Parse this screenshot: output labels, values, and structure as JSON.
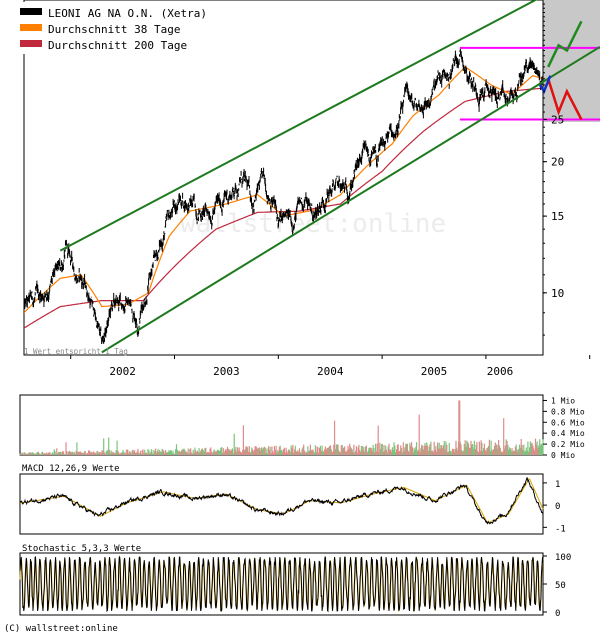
{
  "chart_data": [
    {
      "type": "line",
      "panel": "price",
      "legend": [
        {
          "name": "LEONI AG NA O.N. (Xetra)",
          "color": "#000000"
        },
        {
          "name": "Durchschnitt 38 Tage",
          "color": "#ff7f00"
        },
        {
          "name": "Durchschnitt 200 Tage",
          "color": "#c0283c"
        }
      ],
      "y_scale": "log",
      "ylim": [
        7.2,
        47
      ],
      "y_ticks": [
        10,
        15,
        20,
        25
      ],
      "xlim": [
        2001.55,
        2006.55
      ],
      "x_ticks": [
        2002,
        2003,
        2004,
        2005,
        2006
      ],
      "note": "1 Wert entspricht 1 Tag",
      "watermark": "wallstreet:online",
      "price_anchors": [
        {
          "x": 2001.55,
          "y": 9.2
        },
        {
          "x": 2001.75,
          "y": 10.0
        },
        {
          "x": 2001.9,
          "y": 11.2
        },
        {
          "x": 2001.95,
          "y": 12.4
        },
        {
          "x": 2002.05,
          "y": 11.2
        },
        {
          "x": 2002.15,
          "y": 10.3
        },
        {
          "x": 2002.25,
          "y": 8.6
        },
        {
          "x": 2002.3,
          "y": 7.5
        },
        {
          "x": 2002.4,
          "y": 9.2
        },
        {
          "x": 2002.55,
          "y": 9.6
        },
        {
          "x": 2002.65,
          "y": 8.7
        },
        {
          "x": 2002.75,
          "y": 10.5
        },
        {
          "x": 2002.85,
          "y": 12.5
        },
        {
          "x": 2002.95,
          "y": 14.8
        },
        {
          "x": 2003.05,
          "y": 16.5
        },
        {
          "x": 2003.15,
          "y": 16.0
        },
        {
          "x": 2003.3,
          "y": 15.2
        },
        {
          "x": 2003.4,
          "y": 15.8
        },
        {
          "x": 2003.55,
          "y": 17.0
        },
        {
          "x": 2003.65,
          "y": 18.2
        },
        {
          "x": 2003.75,
          "y": 16.3
        },
        {
          "x": 2003.85,
          "y": 17.8
        },
        {
          "x": 2003.95,
          "y": 16.5
        },
        {
          "x": 2004.0,
          "y": 14.4
        },
        {
          "x": 2004.15,
          "y": 14.8
        },
        {
          "x": 2004.25,
          "y": 16.5
        },
        {
          "x": 2004.35,
          "y": 15.0
        },
        {
          "x": 2004.45,
          "y": 16.7
        },
        {
          "x": 2004.55,
          "y": 17.5
        },
        {
          "x": 2004.65,
          "y": 17.0
        },
        {
          "x": 2004.75,
          "y": 19.0
        },
        {
          "x": 2004.85,
          "y": 20.8
        },
        {
          "x": 2004.95,
          "y": 20.0
        },
        {
          "x": 2005.05,
          "y": 22.5
        },
        {
          "x": 2005.15,
          "y": 24.0
        },
        {
          "x": 2005.25,
          "y": 28.5
        },
        {
          "x": 2005.3,
          "y": 26.5
        },
        {
          "x": 2005.45,
          "y": 27.5
        },
        {
          "x": 2005.55,
          "y": 30.5
        },
        {
          "x": 2005.65,
          "y": 31.5
        },
        {
          "x": 2005.75,
          "y": 36.0
        },
        {
          "x": 2005.8,
          "y": 34.0
        },
        {
          "x": 2005.9,
          "y": 29.5
        },
        {
          "x": 2006.0,
          "y": 29.0
        },
        {
          "x": 2006.1,
          "y": 28.5
        },
        {
          "x": 2006.2,
          "y": 27.0
        },
        {
          "x": 2006.3,
          "y": 29.0
        },
        {
          "x": 2006.4,
          "y": 33.5
        },
        {
          "x": 2006.48,
          "y": 32.5
        },
        {
          "x": 2006.55,
          "y": 30.0
        }
      ],
      "ma38_anchors": [
        {
          "x": 2001.55,
          "y": 9.0
        },
        {
          "x": 2001.9,
          "y": 10.8
        },
        {
          "x": 2002.1,
          "y": 11.0
        },
        {
          "x": 2002.3,
          "y": 9.3
        },
        {
          "x": 2002.55,
          "y": 9.4
        },
        {
          "x": 2002.75,
          "y": 10.0
        },
        {
          "x": 2002.95,
          "y": 13.5
        },
        {
          "x": 2003.15,
          "y": 15.4
        },
        {
          "x": 2003.5,
          "y": 16.0
        },
        {
          "x": 2003.8,
          "y": 16.8
        },
        {
          "x": 2004.05,
          "y": 15.0
        },
        {
          "x": 2004.35,
          "y": 15.5
        },
        {
          "x": 2004.6,
          "y": 16.8
        },
        {
          "x": 2004.85,
          "y": 19.5
        },
        {
          "x": 2005.1,
          "y": 22.0
        },
        {
          "x": 2005.3,
          "y": 25.5
        },
        {
          "x": 2005.55,
          "y": 28.5
        },
        {
          "x": 2005.8,
          "y": 33.0
        },
        {
          "x": 2006.05,
          "y": 30.0
        },
        {
          "x": 2006.25,
          "y": 28.5
        },
        {
          "x": 2006.45,
          "y": 31.5
        },
        {
          "x": 2006.55,
          "y": 31.0
        }
      ],
      "ma200_anchors": [
        {
          "x": 2001.55,
          "y": 8.3
        },
        {
          "x": 2001.9,
          "y": 9.3
        },
        {
          "x": 2002.3,
          "y": 9.6
        },
        {
          "x": 2002.7,
          "y": 9.6
        },
        {
          "x": 2003.0,
          "y": 11.5
        },
        {
          "x": 2003.4,
          "y": 14.0
        },
        {
          "x": 2003.8,
          "y": 15.3
        },
        {
          "x": 2004.2,
          "y": 15.4
        },
        {
          "x": 2004.6,
          "y": 16.0
        },
        {
          "x": 2005.0,
          "y": 19.0
        },
        {
          "x": 2005.4,
          "y": 23.5
        },
        {
          "x": 2005.8,
          "y": 27.5
        },
        {
          "x": 2006.2,
          "y": 29.0
        },
        {
          "x": 2006.55,
          "y": 29.5
        }
      ],
      "annotations": {
        "trend_channel_upper": [
          {
            "x": 2001.9,
            "y": 12.5
          },
          {
            "x": 2006.55,
            "y": 48
          }
        ],
        "trend_channel_lower": [
          {
            "x": 2002.3,
            "y": 7.3
          },
          {
            "x": 2006.55,
            "y": 30.5
          }
        ],
        "horizontal_lines": [
          36.5,
          25.0
        ],
        "projection_up": [
          {
            "x": 2006.6,
            "y": 33
          },
          {
            "x": 2006.7,
            "y": 37
          },
          {
            "x": 2006.78,
            "y": 36
          },
          {
            "x": 2006.92,
            "y": 42
          }
        ],
        "projection_down": [
          {
            "x": 2006.6,
            "y": 31
          },
          {
            "x": 2006.7,
            "y": 26
          },
          {
            "x": 2006.78,
            "y": 29
          },
          {
            "x": 2006.92,
            "y": 25
          }
        ],
        "projection_small": [
          {
            "x": 2006.52,
            "y": 30
          },
          {
            "x": 2006.56,
            "y": 29
          },
          {
            "x": 2006.62,
            "y": 31.5
          }
        ]
      }
    },
    {
      "type": "bar",
      "panel": "volume",
      "y_unit": "Mio",
      "ylim": [
        0,
        1.1
      ],
      "y_ticks": [
        0,
        0.2,
        0.4,
        0.6,
        0.8,
        1
      ],
      "y_tick_labels": [
        "0 Mio",
        "0.2 Mio",
        "0.4 Mio",
        "0.6 Mio",
        "0.8 Mio",
        "1 Mio"
      ],
      "series": [
        {
          "name": "up",
          "color": "#7cc47c"
        },
        {
          "name": "down",
          "color": "#e08a8a"
        }
      ]
    },
    {
      "type": "line",
      "panel": "macd",
      "title": "MACD 12,26,9 Werte",
      "ylim": [
        -1.3,
        1.4
      ],
      "y_ticks": [
        -1,
        0,
        1
      ],
      "anchors": [
        {
          "x": 2001.55,
          "y": 0.1
        },
        {
          "x": 2001.95,
          "y": 0.4
        },
        {
          "x": 2002.3,
          "y": -0.5
        },
        {
          "x": 2002.55,
          "y": 0.1
        },
        {
          "x": 2002.9,
          "y": 0.6
        },
        {
          "x": 2003.2,
          "y": 0.3
        },
        {
          "x": 2003.5,
          "y": 0.5
        },
        {
          "x": 2003.8,
          "y": -0.2
        },
        {
          "x": 2004.05,
          "y": -0.4
        },
        {
          "x": 2004.3,
          "y": 0.2
        },
        {
          "x": 2004.6,
          "y": 0.1
        },
        {
          "x": 2004.9,
          "y": 0.5
        },
        {
          "x": 2005.2,
          "y": 0.8
        },
        {
          "x": 2005.5,
          "y": 0.2
        },
        {
          "x": 2005.8,
          "y": 0.9
        },
        {
          "x": 2006.0,
          "y": -0.8
        },
        {
          "x": 2006.2,
          "y": -0.4
        },
        {
          "x": 2006.4,
          "y": 1.2
        },
        {
          "x": 2006.55,
          "y": -0.4
        }
      ]
    },
    {
      "type": "line",
      "panel": "stochastic",
      "title": "Stochastic 5,3,3 Werte",
      "ylim": [
        0,
        100
      ],
      "y_ticks": [
        0,
        50,
        100
      ]
    }
  ],
  "footer": "(C) wallstreet:online"
}
